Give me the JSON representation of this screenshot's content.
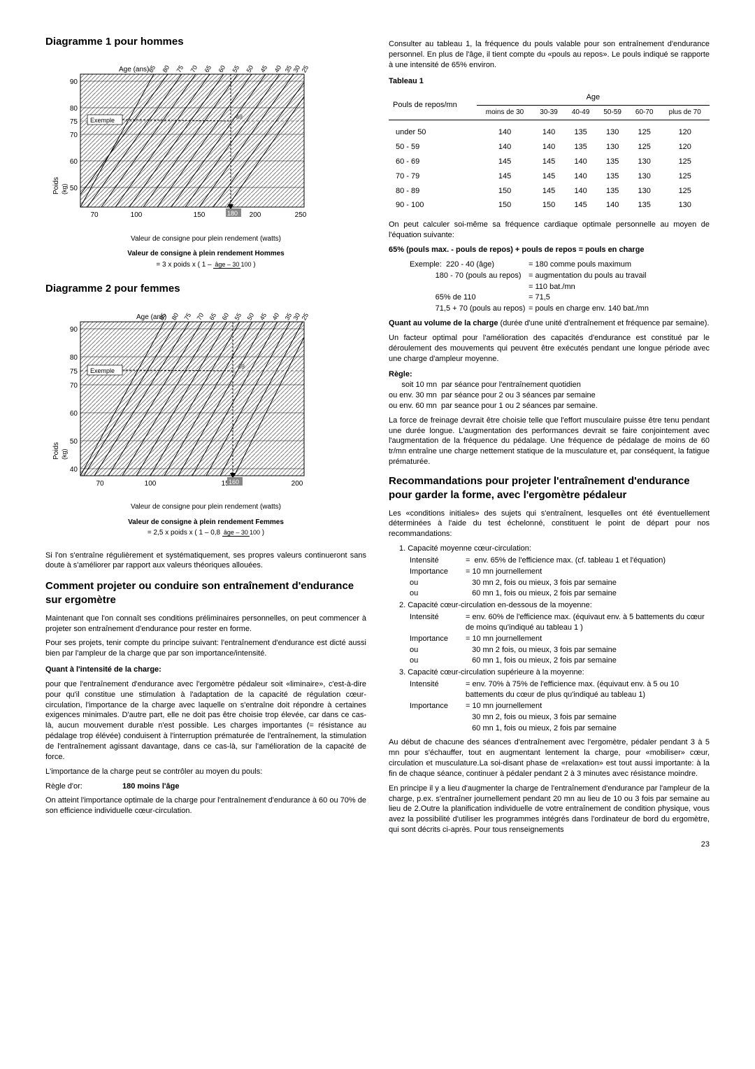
{
  "left": {
    "h1": "Diagramme 1 pour hommes",
    "chart1": {
      "ages": [
        "85",
        "80",
        "75",
        "70",
        "65",
        "60",
        "55",
        "50",
        "45",
        "40",
        "35",
        "30",
        "25"
      ],
      "ageLabel": "Age (ans)",
      "yTicks": [
        90,
        80,
        75,
        70,
        60,
        50
      ],
      "yLabel": "Poids (kg)",
      "xTicks": [
        70,
        100,
        150,
        200,
        250
      ],
      "exemple": "Exemple",
      "exempleY": 75,
      "marker": "180",
      "arrow": "49",
      "caption": "Valeur de consigne pour plein rendement (watts)",
      "lines": {
        "count": 13,
        "x0": 70,
        "slope": 2.1,
        "spacing": 14
      },
      "colors": {
        "grid": "#000",
        "hatch": "#808080",
        "bg": "#fff"
      }
    },
    "formula1Title": "Valeur de consigne à plein rendement Hommes",
    "formula1": "= 3 x poids x ( 1 – ",
    "formula1FracTop": "âge – 30",
    "formula1FracBot": "100",
    "formula1End": " )",
    "h2": "Diagramme 2 pour femmes",
    "chart2": {
      "ages": [
        "85",
        "80",
        "75",
        "70",
        "65",
        "60",
        "55",
        "50",
        "45",
        "40",
        "35",
        "30",
        "25"
      ],
      "ageLabel": "Age (ans)",
      "yTicks": [
        90,
        80,
        75,
        70,
        60,
        50,
        40
      ],
      "yLabel": "Poids (kg)",
      "xTicks": [
        70,
        100,
        150,
        200
      ],
      "exemple": "Exemple",
      "exempleY": 75,
      "marker": "160",
      "arrow": "49",
      "caption": "Valeur de consigne pour plein rendement (watts)",
      "lines": {
        "count": 13,
        "x0": 70,
        "slope": 2.3,
        "spacing": 12
      },
      "colors": {
        "grid": "#000",
        "hatch": "#808080",
        "bg": "#fff"
      }
    },
    "formula2Title": "Valeur de consigne à plein rendement Femmes",
    "formula2": "= 2,5 x poids x ( 1 – 0,8 ",
    "formula2FracTop": "âge – 30",
    "formula2FracBot": "100",
    "formula2End": " )",
    "p1": "Si l'on s'entraîne régulièrement et systématiquement, ses propres valeurs continueront sans doute à s'améliorer par rapport aux valeurs théoriques allouées.",
    "h3": "Comment projeter ou conduire son entraînement d'endurance sur ergomètre",
    "p2": "Maintenant que l'on connaît ses conditions préliminaires personnelles, on peut commencer à projeter son entraînement d'endurance pour rester en forme.",
    "p3": "Pour ses projets, tenir compte du principe suivant: l'entraînement d'endurance est dicté aussi bien par l'ampleur de la charge que par son importance/intensité.",
    "sub1": "Quant à l'intensité de la charge:",
    "p4": "pour que l'entraînement d'endurance avec l'ergomètre pédaleur soit «liminaire», c'est-à-dire pour qu'il constitue une stimulation à l'adaptation de la capacité de régulation cœur-circulation, l'importance de la charge avec laquelle on s'entraîne doit répondre à certaines exigences minimales. D'autre part, elle ne doit pas être choisie trop élevée, car dans ce cas-là, aucun mouvement durable n'est possible. Les charges importantes (= résistance au pédalage trop élévée) conduisent à l'interruption prématurée de l'entraînement, la stimulation de l'entraînement agissant davantage, dans ce cas-là, sur l'amélioration de la capacité de force.",
    "p5": "L'importance de la charge peut se contrôler au moyen du pouls:",
    "regleLabel": "Règle d'or:",
    "regleVal": "180 moins l'âge",
    "p6": "On atteint l'importance optimale de la charge pour l'entraînement d'endurance à 60 ou 70% de son efficience individuelle cœur-circulation."
  },
  "right": {
    "p1": "Consulter au tableau 1, la fréquence du pouls valable pour son entraînement d'endurance personnel. En plus de l'âge, il tient compte du «pouls au repos». Le pouls indiqué se rapporte à une intensité de 65% environ.",
    "tabTitle": "Tableau 1",
    "table": {
      "colLabel": "Pouls de repos/mn",
      "ageLabel": "Age",
      "cols": [
        "moins de 30",
        "30-39",
        "40-49",
        "50-59",
        "60-70",
        "plus de 70"
      ],
      "rows": [
        {
          "k": "under 50",
          "v": [
            "140",
            "140",
            "135",
            "130",
            "125",
            "120"
          ]
        },
        {
          "k": "50 - 59",
          "v": [
            "140",
            "140",
            "135",
            "130",
            "125",
            "120"
          ]
        },
        {
          "k": "60 - 69",
          "v": [
            "145",
            "145",
            "140",
            "135",
            "130",
            "125"
          ]
        },
        {
          "k": "70 - 79",
          "v": [
            "145",
            "145",
            "140",
            "135",
            "130",
            "125"
          ]
        },
        {
          "k": "80 - 89",
          "v": [
            "150",
            "145",
            "140",
            "135",
            "130",
            "125"
          ]
        },
        {
          "k": "90 - 100",
          "v": [
            "150",
            "150",
            "145",
            "140",
            "135",
            "130"
          ]
        }
      ]
    },
    "p2": "On peut calculer soi-même sa fréquence cardiaque optimale personnelle au moyen de l'équation suivante:",
    "eq": "65% (pouls max. - pouls de repos) + pouls de repos = pouls en charge",
    "calc": [
      {
        "l": "Exemple:  220 - 40 (âge)",
        "r": "= 180 comme pouls maximum"
      },
      {
        "l": "            180 - 70 (pouls au repos)",
        "r": "= augmentation du pouls au travail"
      },
      {
        "l": "",
        "r": "= 110 bat./mn"
      },
      {
        "l": "            65% de 110",
        "r": "= 71,5"
      },
      {
        "l": "            71,5 + 70 (pouls au repos)",
        "r": "= pouls en charge env. 140 bat./mn"
      }
    ],
    "p3a": "Quant au volume de la charge",
    "p3b": " (durée d'une unité d'entraînement et fréquence par semaine).",
    "p4": "Un facteur optimal pour l'amélioration des capacités d'endurance est constitué par le déroulement des mouvements qui peuvent être exécutés pendant une longue période avec une charge d'ampleur moyenne.",
    "regle": "Règle:",
    "r1": "      soit 10 mn  par séance pour l'entraînement quotidien",
    "r2": "ou env. 30 mn  par séance pour 2 ou 3 séances par semaine",
    "r3": "ou env. 60 mn  par seance pour 1 ou 2 séances par semaine.",
    "p5": "La force de freinage devrait être choisie telle que l'effort musculaire puisse être tenu pendant une durée longue. L'augmentation des performances devrait se faire conjointement avec l'augmentation de la fréquence du pédalage. Une fréquence de pédalage de moins de 60 tr/mn entraîne une charge nettement statique de la musculature et, par conséquent, la fatigue prématurée.",
    "h4": "Recommandations pour projeter l'entraînement d'endurance pour garder la forme, avec l'ergomètre pédaleur",
    "p6": "Les «conditions initiales» des sujets qui s'entraînent, lesquelles ont été éventuellement déterminées à l'aide du test échelonné, constituent le point de départ pour nos recommandations:",
    "recs": [
      {
        "t": "1. Capacité moyenne cœur-circulation:",
        "items": [
          {
            "k": "Intensité",
            "v": "=  env. 65% de l'efficience max. (cf. tableau 1 et l'équation)"
          },
          {
            "k": "Importance",
            "v": "= 10 mn journellement"
          },
          {
            "k": "ou",
            "v": "   30 mn 2, fois ou mieux, 3 fois par semaine"
          },
          {
            "k": "ou",
            "v": "   60 mn 1, fois ou mieux, 2 fois par semaine"
          }
        ]
      },
      {
        "t": "2. Capacité cœur-circulation en-dessous de la moyenne:",
        "items": [
          {
            "k": "Intensité",
            "v": "= env. 60% de l'efficience max. (équivaut env. à 5 battements du cœur de moins qu'indiqué au tableau 1 )"
          },
          {
            "k": "Importance",
            "v": "= 10 mn journellement"
          },
          {
            "k": "ou",
            "v": "   30 mn 2 fois, ou mieux, 3 fois par semaine"
          },
          {
            "k": "ou",
            "v": "   60 mn 1, fois ou mieux, 2 fois par semaine"
          }
        ]
      },
      {
        "t": "3. Capacité cœur-circulation supérieure à la moyenne:",
        "items": [
          {
            "k": "Intensité",
            "v": "= env. 70% à 75% de l'efficience max. (équivaut env. à 5 ou 10 battements du cœur de plus qu'indiqué au tableau 1)"
          },
          {
            "k": "Importance",
            "v": "= 10 mn journellement"
          },
          {
            "k": "",
            "v": "   30 mn 2, fois ou mieux, 3 fois par semaine"
          },
          {
            "k": "",
            "v": "   60 mn 1, fois ou mieux, 2 fois par semaine"
          }
        ]
      }
    ],
    "p7": "Au début de chacune des séances d'entraînement avec l'ergomètre, pédaler pendant 3 à 5 mn pour s'échauffer, tout en augmentant lentement la charge, pour «mobiliser» cœur, circulation et musculature.La soi-disant phase de «relaxation» est tout aussi importante: à la fin de chaque séance, continuer à pédaler pendant 2 à 3 minutes avec résistance moindre.",
    "p8": "En principe il y a lieu d'augmenter la charge de l'entraînement d'endurance par l'ampleur de la charge, p.ex. s'entraîner journellement pendant 20 mn au lieu de 10 ou 3 fois par semaine au lieu de 2.Outre la planification individuelle de votre entraînement de condition physique, vous avez la possibilité d'utiliser les programmes intégrés dans l'ordinateur de bord du ergomètre, qui sont décrits ci-après. Pour tous renseignements"
  },
  "page": "23"
}
